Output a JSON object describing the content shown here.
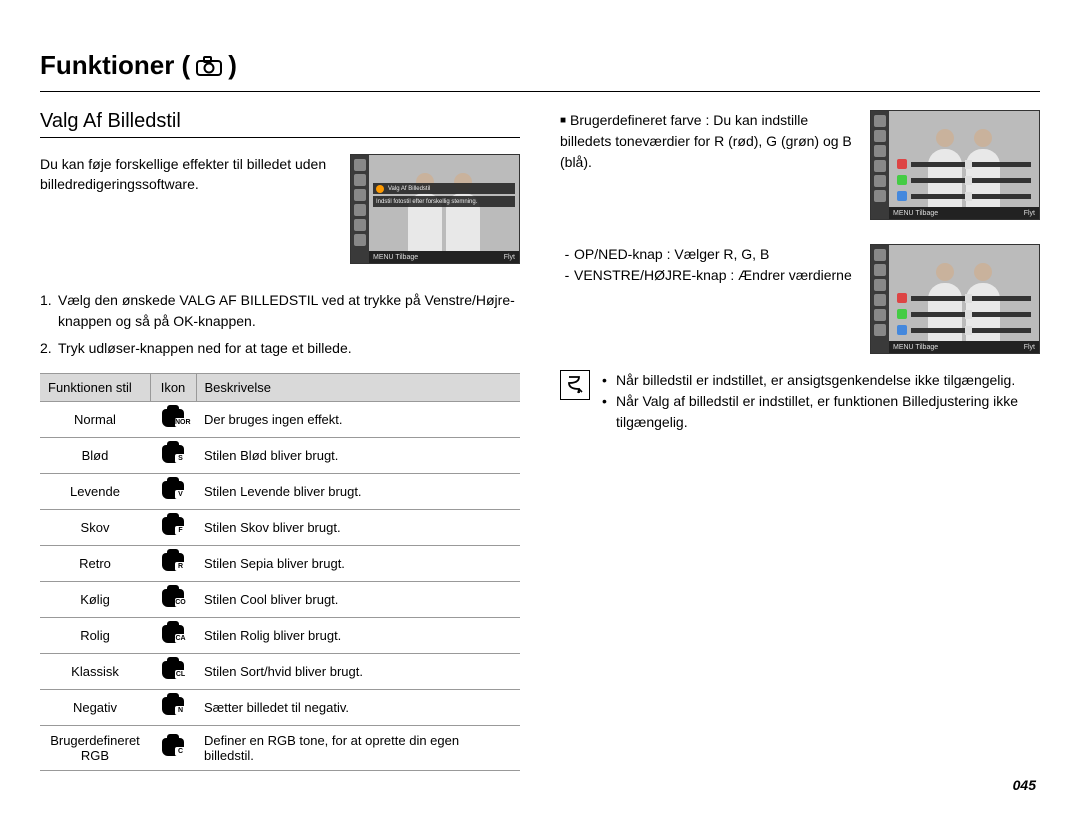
{
  "page": {
    "title_prefix": "Funktioner (",
    "title_suffix": ")",
    "page_number": "045"
  },
  "left": {
    "section_title": "Valg Af Billedstil",
    "intro": "Du kan føje forskellige effekter til billedet uden billedredigeringssoftware.",
    "lcd1": {
      "row_title": "Valg Af Billedstil",
      "row_sub": "Indstil fotostil efter forskellig stemning.",
      "foot_left": "MENU Tilbage",
      "foot_right": "Flyt"
    },
    "steps": [
      "Vælg den ønskede VALG AF BILLEDSTIL ved at trykke på Venstre/Højre-knappen og så på OK-knappen.",
      "Tryk udløser-knappen ned for at tage et billede."
    ],
    "table": {
      "headers": [
        "Funktionen stil",
        "Ikon",
        "Beskrivelse"
      ],
      "rows": [
        {
          "stil": "Normal",
          "tag": "NOR",
          "desc": "Der bruges ingen effekt."
        },
        {
          "stil": "Blød",
          "tag": "S",
          "desc": "Stilen Blød bliver brugt."
        },
        {
          "stil": "Levende",
          "tag": "V",
          "desc": "Stilen Levende bliver brugt."
        },
        {
          "stil": "Skov",
          "tag": "F",
          "desc": "Stilen Skov bliver brugt."
        },
        {
          "stil": "Retro",
          "tag": "R",
          "desc": "Stilen Sepia bliver brugt."
        },
        {
          "stil": "Kølig",
          "tag": "CO",
          "desc": "Stilen Cool bliver brugt."
        },
        {
          "stil": "Rolig",
          "tag": "CA",
          "desc": "Stilen Rolig bliver brugt."
        },
        {
          "stil": "Klassisk",
          "tag": "CL",
          "desc": "Stilen Sort/hvid bliver brugt."
        },
        {
          "stil": "Negativ",
          "tag": "N",
          "desc": "Sætter billedet til negativ."
        },
        {
          "stil": "Brugerdefineret RGB",
          "tag": "C",
          "desc": "Definer en RGB tone, for at oprette din egen billedstil."
        }
      ]
    }
  },
  "right": {
    "custom_intro_label": "Brugerdefineret farve : ",
    "custom_intro_body": "Du kan indstille billedets toneværdier for R (rød), G (grøn) og B (blå).",
    "lcd2": {
      "foot_left": "MENU Tilbage",
      "foot_right": "Flyt"
    },
    "knap": [
      {
        "label": "OP/NED-knap : ",
        "desc": "Vælger R, G, B"
      },
      {
        "label": "VENSTRE/HØJRE-knap : ",
        "desc": "Ændrer værdierne"
      }
    ],
    "lcd3": {
      "foot_left": "MENU Tilbage",
      "foot_right": "Flyt"
    },
    "notes": [
      "Når billedstil er indstillet, er ansigtsgenkendelse ikke tilgængelig.",
      "Når Valg af billedstil er indstillet, er funktionen Billedjustering ikke tilgængelig."
    ]
  }
}
